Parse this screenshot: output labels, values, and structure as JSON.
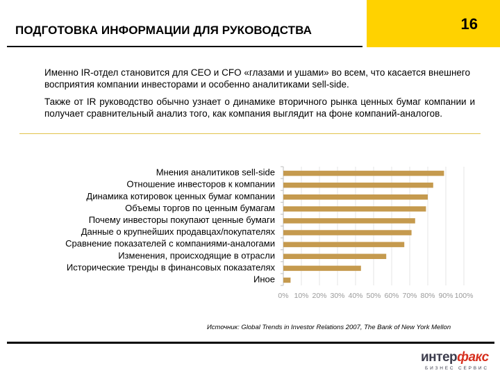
{
  "header": {
    "title": "ПОДГОТОВКА ИНФОРМАЦИИ ДЛЯ РУКОВОДСТВА",
    "page_number": "16"
  },
  "body": {
    "para1": "Именно IR-отдел становится для CEO и CFO «глазами и ушами» во всем, что касается внешнего восприятия компании инвесторами и особенно аналитиками sell-side.",
    "para2": "Также от IR руководство обычно узнает о динамике вторичного рынка ценных бумаг компании и получает сравнительный анализ того, как компания выглядит на фоне компаний-аналогов."
  },
  "chart_data": {
    "type": "bar",
    "orientation": "horizontal",
    "categories": [
      "Мнения аналитиков sell-side",
      "Отношение инвесторов к компании",
      "Динамика котировок ценных бумаг компании",
      "Объемы торгов по ценным бумагам",
      "Почему инвесторы покупают ценные бумаги",
      "Данные о крупнейших продавцах/покупателях",
      "Сравнение показателей с компаниями-аналогами",
      "Изменения, происходящие в отрасли",
      "Исторические тренды в финансовых показателях",
      "Иное"
    ],
    "values": [
      89,
      83,
      80,
      79,
      73,
      71,
      67,
      57,
      43,
      4
    ],
    "x_ticks": [
      "0%",
      "10%",
      "20%",
      "30%",
      "40%",
      "50%",
      "60%",
      "70%",
      "80%",
      "90%",
      "100%"
    ],
    "xlim": [
      0,
      100
    ],
    "bar_color": "#c59a4e",
    "grid": true
  },
  "source": "Источник: Global Trends in Investor Relations 2007, The Bank of New York Mellon",
  "logo": {
    "word_main": "интер",
    "word_accent": "факс",
    "sub": "БИЗНЕС СЕРВИС"
  }
}
